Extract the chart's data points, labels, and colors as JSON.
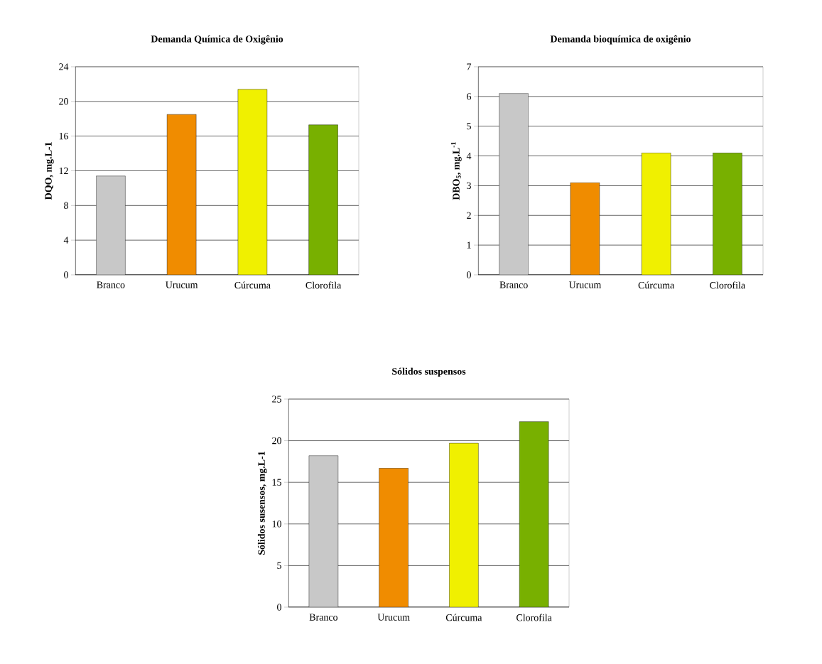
{
  "chart_data": [
    {
      "type": "bar",
      "title": "Demanda Química de Oxigênio",
      "ylabel": "DQO, mg.L-1",
      "categories": [
        "Branco",
        "Urucum",
        "Cúrcuma",
        "Clorofila"
      ],
      "values": [
        11.4,
        18.5,
        21.4,
        17.3
      ],
      "colors": [
        "#c8c8c8",
        "#f08c00",
        "#f0f000",
        "#78b000"
      ],
      "ylim": [
        0,
        24
      ],
      "yticks": [
        0,
        4,
        8,
        12,
        16,
        20,
        24
      ],
      "grid": "y"
    },
    {
      "type": "bar",
      "title": "Demanda bioquímica de oxigênio",
      "ylabel": "DBO$_{5}$, mg.L$^{-1}$",
      "categories": [
        "Branco",
        "Urucum",
        "Cúrcuma",
        "Clorofila"
      ],
      "values": [
        6.1,
        3.1,
        4.1,
        4.1
      ],
      "colors": [
        "#c8c8c8",
        "#f08c00",
        "#f0f000",
        "#78b000"
      ],
      "ylim": [
        0,
        7
      ],
      "yticks": [
        0,
        1,
        2,
        3,
        4,
        5,
        6,
        7
      ],
      "grid": "y"
    },
    {
      "type": "bar",
      "title": "Sólidos suspensos",
      "ylabel": "Sólidos susensos, mg.L-1",
      "categories": [
        "Branco",
        "Urucum",
        "Cúrcuma",
        "Clorofila"
      ],
      "values": [
        18.2,
        16.7,
        19.7,
        22.3
      ],
      "colors": [
        "#c8c8c8",
        "#f08c00",
        "#f0f000",
        "#78b000"
      ],
      "ylim": [
        0,
        25
      ],
      "yticks": [
        0,
        5,
        10,
        15,
        20,
        25
      ],
      "grid": "y"
    }
  ]
}
